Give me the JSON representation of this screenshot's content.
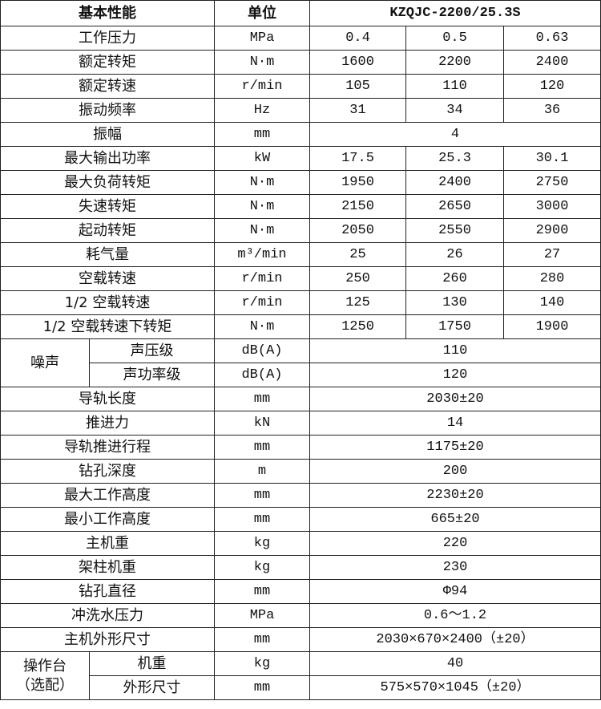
{
  "header": {
    "feature": "基本性能",
    "unit": "单位",
    "model": "KZQJC-2200/25.3S"
  },
  "rows3": [
    {
      "name": "工作压力",
      "unit": "MPa",
      "values": [
        "0.4",
        "0.5",
        "0.63"
      ]
    },
    {
      "name": "额定转矩",
      "unit": "N·m",
      "values": [
        "1600",
        "2200",
        "2400"
      ]
    },
    {
      "name": "额定转速",
      "unit": "r/min",
      "values": [
        "105",
        "110",
        "120"
      ]
    },
    {
      "name": "振动频率",
      "unit": "Hz",
      "values": [
        "31",
        "34",
        "36"
      ]
    }
  ],
  "amplitude": {
    "name": "振幅",
    "unit": "mm",
    "value": "4"
  },
  "rows3b": [
    {
      "name": "最大输出功率",
      "unit": "kW",
      "values": [
        "17.5",
        "25.3",
        "30.1"
      ]
    },
    {
      "name": "最大负荷转矩",
      "unit": "N·m",
      "values": [
        "1950",
        "2400",
        "2750"
      ]
    },
    {
      "name": "失速转矩",
      "unit": "N·m",
      "values": [
        "2150",
        "2650",
        "3000"
      ]
    },
    {
      "name": "起动转矩",
      "unit": "N·m",
      "values": [
        "2050",
        "2550",
        "2900"
      ]
    },
    {
      "name": "耗气量",
      "unit": "m³/min",
      "values": [
        "25",
        "26",
        "27"
      ]
    },
    {
      "name": "空载转速",
      "unit": "r/min",
      "values": [
        "250",
        "260",
        "280"
      ]
    },
    {
      "name": "1/2 空载转速",
      "unit": "r/min",
      "values": [
        "125",
        "130",
        "140"
      ]
    },
    {
      "name": "1/2 空载转速下转矩",
      "unit": "N·m",
      "values": [
        "1250",
        "1750",
        "1900"
      ]
    }
  ],
  "noise": {
    "group": "噪声",
    "rows": [
      {
        "name": "声压级",
        "unit": "dB(A)",
        "value": "110"
      },
      {
        "name": "声功率级",
        "unit": "dB(A)",
        "value": "120"
      }
    ]
  },
  "rows1": [
    {
      "name": "导轨长度",
      "unit": "mm",
      "value": "2030±20"
    },
    {
      "name": "推进力",
      "unit": "kN",
      "value": "14"
    },
    {
      "name": "导轨推进行程",
      "unit": "mm",
      "value": "1175±20"
    },
    {
      "name": "钻孔深度",
      "unit": "m",
      "value": "200"
    },
    {
      "name": "最大工作高度",
      "unit": "mm",
      "value": "2230±20"
    },
    {
      "name": "最小工作高度",
      "unit": "mm",
      "value": "665±20"
    },
    {
      "name": "主机重",
      "unit": "kg",
      "value": "220"
    },
    {
      "name": "架柱机重",
      "unit": "kg",
      "value": "230"
    },
    {
      "name": "钻孔直径",
      "unit": "mm",
      "value": "Φ94"
    },
    {
      "name": "冲洗水压力",
      "unit": "MPa",
      "value": "0.6～1.2"
    },
    {
      "name": "主机外形尺寸",
      "unit": "mm",
      "value": "2030×670×2400（±20）"
    }
  ],
  "console": {
    "group_line1": "操作台",
    "group_line2": "（选配）",
    "rows": [
      {
        "name": "机重",
        "unit": "kg",
        "value": "40"
      },
      {
        "name": "外形尺寸",
        "unit": "mm",
        "value": "575×570×1045（±20）"
      }
    ]
  }
}
